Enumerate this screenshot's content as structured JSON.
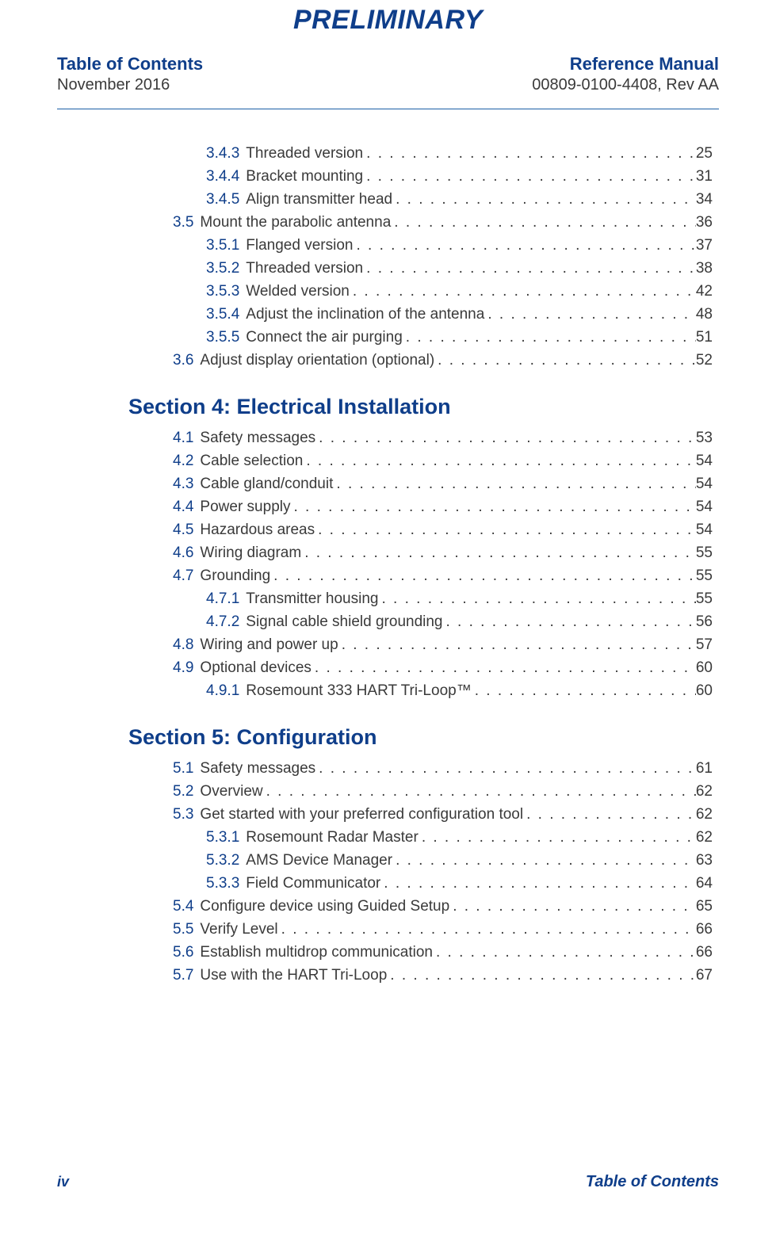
{
  "colors": {
    "brand_blue": "#0f3e8a",
    "rule_blue": "#1b5fa6",
    "text": "#3a3a3a",
    "page_bg": "#ffffff"
  },
  "fonts": {
    "watermark_size": 34,
    "header_title_size": 22,
    "header_sub_size": 20,
    "section_title_size": 27,
    "toc_size": 19,
    "footer_pn_size": 18,
    "footer_label_size": 20
  },
  "watermark": "PRELIMINARY",
  "header": {
    "left": {
      "title": "Table of Contents",
      "date": "November 2016"
    },
    "right": {
      "title": "Reference Manual",
      "docnum": "00809-0100-4408, Rev AA"
    }
  },
  "footer": {
    "page_number": "iv",
    "label": "Table of Contents"
  },
  "sections": [
    {
      "title": null,
      "entries": [
        {
          "level": 2,
          "num": "3.4.3",
          "label": "Threaded version",
          "page": "25"
        },
        {
          "level": 2,
          "num": "3.4.4",
          "label": "Bracket mounting",
          "page": "31"
        },
        {
          "level": 2,
          "num": "3.4.5",
          "label": "Align transmitter head",
          "page": "34"
        },
        {
          "level": 1,
          "num": "3.5",
          "label": "Mount the parabolic antenna",
          "page": "36"
        },
        {
          "level": 2,
          "num": "3.5.1",
          "label": "Flanged version",
          "page": "37"
        },
        {
          "level": 2,
          "num": "3.5.2",
          "label": "Threaded version",
          "page": "38"
        },
        {
          "level": 2,
          "num": "3.5.3",
          "label": "Welded version",
          "page": "42"
        },
        {
          "level": 2,
          "num": "3.5.4",
          "label": "Adjust the inclination of the antenna",
          "page": "48"
        },
        {
          "level": 2,
          "num": "3.5.5",
          "label": "Connect the air purging",
          "page": "51"
        },
        {
          "level": 1,
          "num": "3.6",
          "label": "Adjust display orientation (optional)",
          "page": "52"
        }
      ]
    },
    {
      "title": "Section 4: Electrical Installation",
      "entries": [
        {
          "level": 1,
          "num": "4.1",
          "label": "Safety messages",
          "page": "53"
        },
        {
          "level": 1,
          "num": "4.2",
          "label": "Cable selection",
          "page": "54"
        },
        {
          "level": 1,
          "num": "4.3",
          "label": "Cable gland/conduit",
          "page": "54"
        },
        {
          "level": 1,
          "num": "4.4",
          "label": "Power supply",
          "page": "54"
        },
        {
          "level": 1,
          "num": "4.5",
          "label": "Hazardous areas",
          "page": "54"
        },
        {
          "level": 1,
          "num": "4.6",
          "label": "Wiring diagram",
          "page": "55"
        },
        {
          "level": 1,
          "num": "4.7",
          "label": "Grounding",
          "page": "55"
        },
        {
          "level": 2,
          "num": "4.7.1",
          "label": "Transmitter housing",
          "page": "55"
        },
        {
          "level": 2,
          "num": "4.7.2",
          "label": "Signal cable shield grounding",
          "page": "56"
        },
        {
          "level": 1,
          "num": "4.8",
          "label": "Wiring and power up",
          "page": "57"
        },
        {
          "level": 1,
          "num": "4.9",
          "label": "Optional devices",
          "page": "60"
        },
        {
          "level": 2,
          "num": "4.9.1",
          "label": "Rosemount 333 HART Tri-Loop™",
          "page": "60"
        }
      ]
    },
    {
      "title": "Section 5: Configuration",
      "entries": [
        {
          "level": 1,
          "num": "5.1",
          "label": "Safety messages",
          "page": "61"
        },
        {
          "level": 1,
          "num": "5.2",
          "label": "Overview",
          "page": "62"
        },
        {
          "level": 1,
          "num": "5.3",
          "label": "Get started with your preferred configuration tool",
          "page": "62"
        },
        {
          "level": 2,
          "num": "5.3.1",
          "label": "Rosemount Radar Master",
          "page": "62"
        },
        {
          "level": 2,
          "num": "5.3.2",
          "label": "AMS Device Manager",
          "page": "63"
        },
        {
          "level": 2,
          "num": "5.3.3",
          "label": "Field Communicator",
          "page": "64"
        },
        {
          "level": 1,
          "num": "5.4",
          "label": "Configure device using Guided Setup",
          "page": "65"
        },
        {
          "level": 1,
          "num": "5.5",
          "label": "Verify Level",
          "page": "66"
        },
        {
          "level": 1,
          "num": "5.6",
          "label": "Establish multidrop communication",
          "page": "66"
        },
        {
          "level": 1,
          "num": "5.7",
          "label": "Use with the HART Tri-Loop",
          "page": "67"
        }
      ]
    }
  ]
}
